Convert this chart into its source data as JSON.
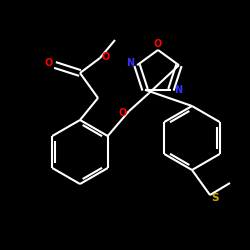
{
  "background_color": "#000000",
  "bond_color": "#ffffff",
  "atom_colors": {
    "O": "#ff0000",
    "N": "#3333ff",
    "S": "#ccaa00"
  },
  "bond_width": 1.5,
  "figsize": [
    2.5,
    2.5
  ],
  "dpi": 100,
  "xlim": [
    0,
    250
  ],
  "ylim": [
    0,
    250
  ]
}
